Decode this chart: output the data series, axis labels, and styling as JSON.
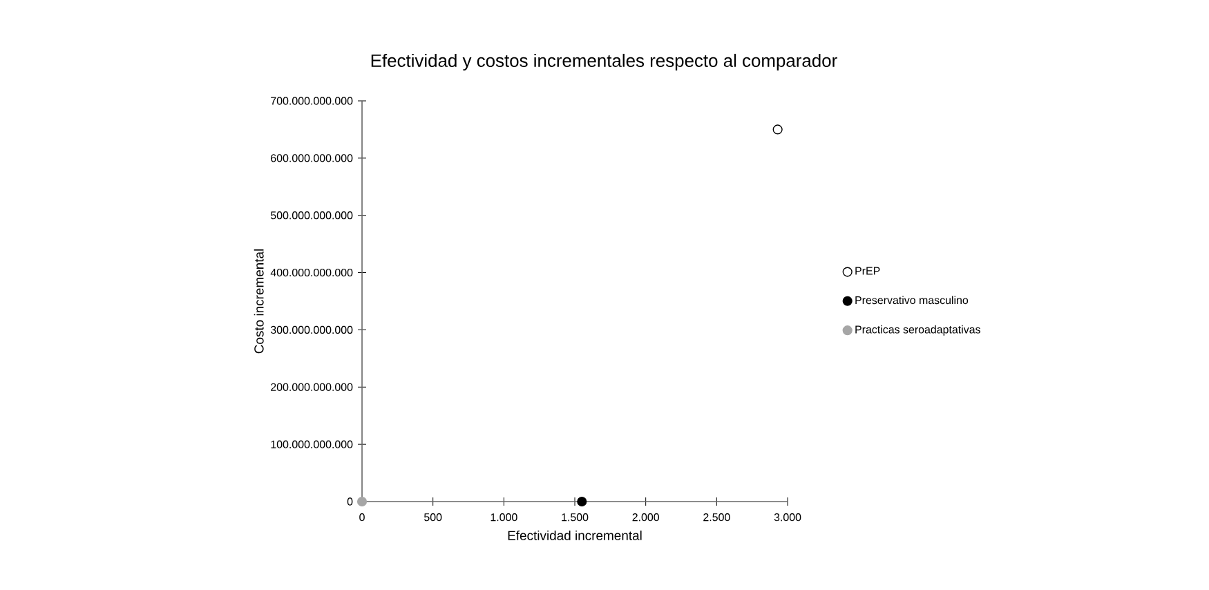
{
  "chart_data": {
    "type": "scatter",
    "title": "Efectividad y costos incrementales respecto al comparador",
    "xlabel": "Efectividad incremental",
    "ylabel": "Costo incremental",
    "xlim": [
      0,
      3000
    ],
    "ylim": [
      0,
      700000000000
    ],
    "xticks": [
      0,
      {
        "value": 500,
        "label": "500"
      },
      {
        "value": 1000,
        "label": "1.000"
      },
      {
        "value": 1500,
        "label": "1.500"
      },
      {
        "value": 2000,
        "label": "2.000"
      },
      {
        "value": 2500,
        "label": "2.500"
      },
      {
        "value": 3000,
        "label": "3.000"
      }
    ],
    "yticks": [
      0,
      {
        "value": 100000000000,
        "label": "100.000.000.000"
      },
      {
        "value": 200000000000,
        "label": "200.000.000.000"
      },
      {
        "value": 300000000000,
        "label": "300.000.000.000"
      },
      {
        "value": 400000000000,
        "label": "400.000.000.000"
      },
      {
        "value": 500000000000,
        "label": "500.000.000.000"
      },
      {
        "value": 600000000000,
        "label": "600.000.000.000"
      },
      {
        "value": 700000000000,
        "label": "700.000.000.000"
      }
    ],
    "series": [
      {
        "name": "PrEP",
        "color": "#ffffff",
        "x": [
          2930
        ],
        "values": [
          650000000000
        ]
      },
      {
        "name": "Preservativo masculino",
        "color": "#000000",
        "x": [
          1550
        ],
        "values": [
          0
        ]
      },
      {
        "name": "Practicas seroadaptativas",
        "color": "#a6a6a6",
        "x": [
          0
        ],
        "values": [
          0
        ]
      }
    ],
    "marker": "circle",
    "legend": "right",
    "grid": false
  }
}
